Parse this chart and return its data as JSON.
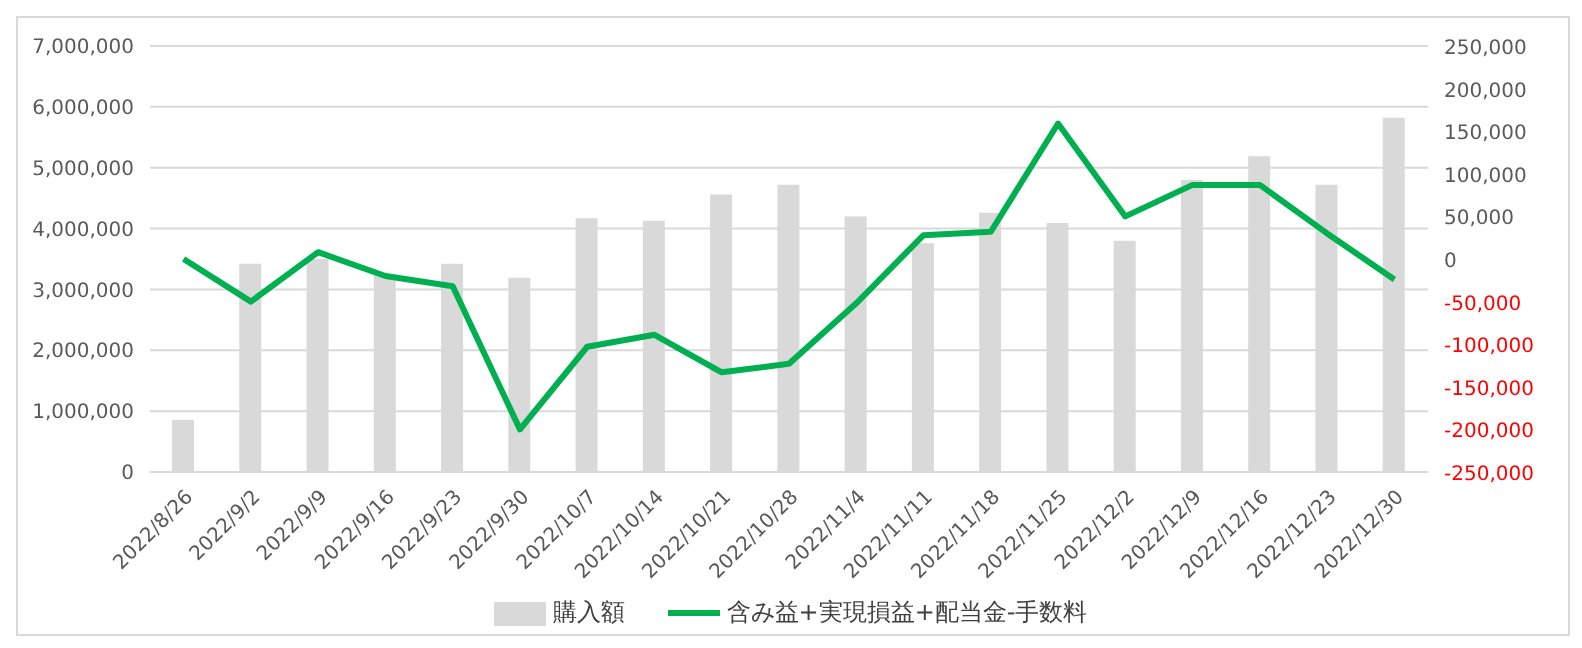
{
  "chart_data": {
    "type": "bar",
    "categories": [
      "2022/8/26",
      "2022/9/2",
      "2022/9/9",
      "2022/9/16",
      "2022/9/23",
      "2022/9/30",
      "2022/10/7",
      "2022/10/14",
      "2022/10/21",
      "2022/10/28",
      "2022/11/4",
      "2022/11/11",
      "2022/11/18",
      "2022/11/25",
      "2022/12/2",
      "2022/12/9",
      "2022/12/16",
      "2022/12/23",
      "2022/12/30"
    ],
    "series": [
      {
        "name": "購入額",
        "color": "#d9d9d9",
        "values": [
          860000,
          3420000,
          3500000,
          3250000,
          3420000,
          3190000,
          4170000,
          4130000,
          4560000,
          4720000,
          4200000,
          3760000,
          4260000,
          4090000,
          3800000,
          4800000,
          5190000,
          4720000,
          5820000
        ]
      },
      {
        "name": "含み益+実現損益+配当金-手数料",
        "type": "line",
        "axis": "y2",
        "color": "#00b050",
        "values": [
          0,
          -50000,
          8000,
          -20000,
          -32000,
          -200000,
          -103000,
          -89000,
          -133000,
          -123000,
          -52000,
          28000,
          32000,
          159000,
          50000,
          87000,
          87000,
          30000,
          -24000
        ]
      }
    ],
    "ylim": [
      0,
      7000000
    ],
    "yticks": [
      0,
      {
        "value": 1000000,
        "label": "1,000,000"
      },
      {
        "value": 2000000,
        "label": "2,000,000"
      },
      {
        "value": 3000000,
        "label": "3,000,000"
      },
      {
        "value": 4000000,
        "label": "4,000,000"
      },
      {
        "value": 5000000,
        "label": "5,000,000"
      },
      {
        "value": 6000000,
        "label": "6,000,000"
      },
      {
        "value": 7000000,
        "label": "7,000,000"
      }
    ],
    "y2lim": [
      -250000,
      250000
    ],
    "y2ticks": [
      {
        "value": -250000,
        "label": "-250,000"
      },
      {
        "value": -200000,
        "label": "-200,000"
      },
      {
        "value": -150000,
        "label": "-150,000"
      },
      {
        "value": -100000,
        "label": "-100,000"
      },
      {
        "value": -50000,
        "label": "-50,000"
      },
      0,
      {
        "value": 50000,
        "label": "50,000"
      },
      {
        "value": 100000,
        "label": "100,000"
      },
      {
        "value": 150000,
        "label": "150,000"
      },
      {
        "value": 200000,
        "label": "200,000"
      },
      {
        "value": 250000,
        "label": "250,000"
      }
    ],
    "grid": "y",
    "legend": "bottom",
    "marker": "none"
  }
}
